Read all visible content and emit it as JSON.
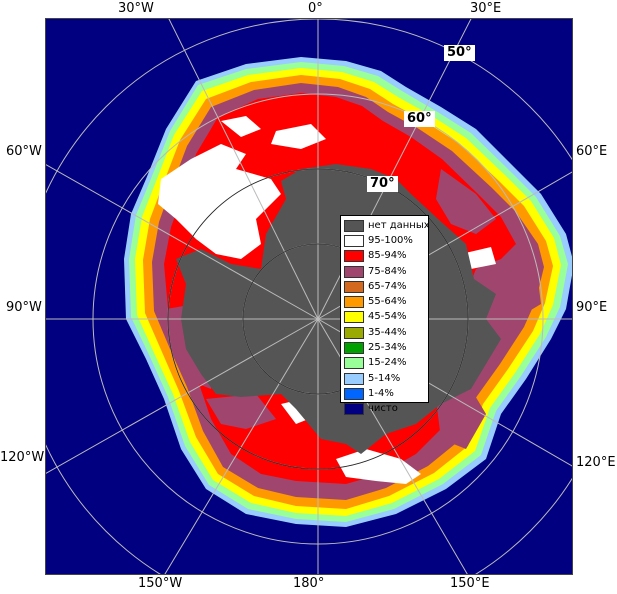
{
  "map": {
    "longitude_labels": {
      "top_30w": "30°W",
      "top_0": "0°",
      "top_30e": "30°E",
      "left_60w": "60°W",
      "left_90w": "90°W",
      "left_120w": "120°W",
      "right_60e": "60°E",
      "right_90e": "90°E",
      "right_120e": "120°E",
      "bottom_150w": "150°W",
      "bottom_180": "180°",
      "bottom_150e": "150°E"
    },
    "latitude_labels": {
      "lat_50": "50°",
      "lat_60": "60°",
      "lat_70": "70°"
    }
  },
  "legend": {
    "items": [
      {
        "label": "нет данных",
        "color": "#555555"
      },
      {
        "label": "95-100%",
        "color": "#ffffff"
      },
      {
        "label": "85-94%",
        "color": "#ff0000"
      },
      {
        "label": "75-84%",
        "color": "#a0466e"
      },
      {
        "label": "65-74%",
        "color": "#d2691e"
      },
      {
        "label": "55-64%",
        "color": "#ff9900"
      },
      {
        "label": "45-54%",
        "color": "#ffff00"
      },
      {
        "label": "35-44%",
        "color": "#9aaa00"
      },
      {
        "label": "25-34%",
        "color": "#00a000"
      },
      {
        "label": "15-24%",
        "color": "#99ff99"
      },
      {
        "label": "5-14%",
        "color": "#99ccff"
      },
      {
        "label": "1-4%",
        "color": "#0066ff"
      },
      {
        "label": "чисто",
        "color": "#000080"
      }
    ]
  }
}
